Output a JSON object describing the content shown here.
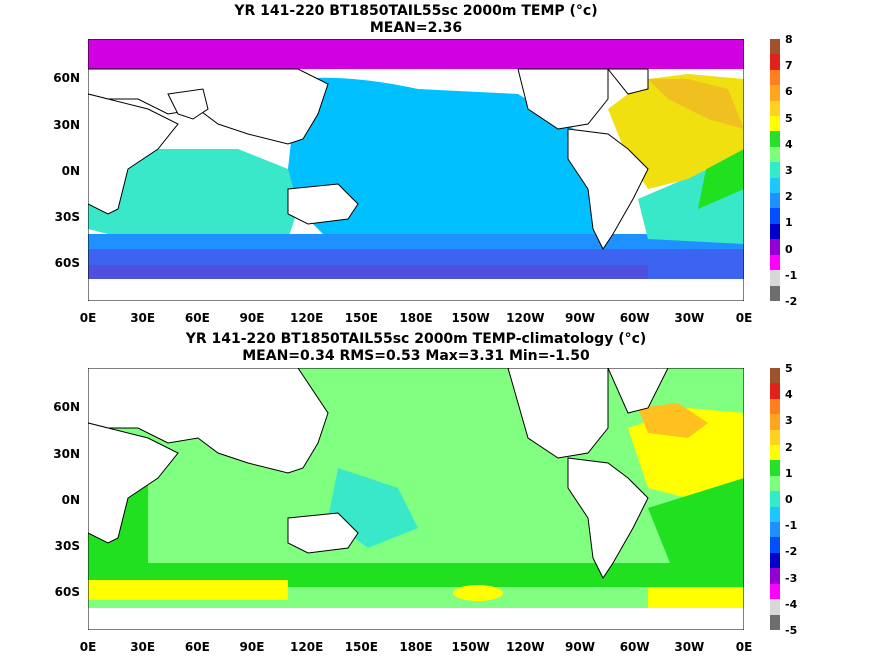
{
  "panels": [
    {
      "title_line1": "YR 141-220 BT1850TAIL55sc 2000m TEMP (°c)",
      "title_line2": "MEAN=2.36",
      "colorbar": {
        "labels": [
          "8",
          "7",
          "6",
          "5",
          "4",
          "3",
          "2",
          "1",
          "0",
          "-1",
          "-2"
        ],
        "colors": [
          "#a0522d",
          "#e0221b",
          "#ff7f1e",
          "#ffa51e",
          "#ffd21e",
          "#ffff00",
          "#28e028",
          "#7cff7c",
          "#32ebc8",
          "#1ec8ff",
          "#1e90ff",
          "#0050ff",
          "#0000c8",
          "#9400d3",
          "#ff00ff",
          "#d8d8d8",
          "#6e6e6e"
        ]
      }
    },
    {
      "title_line1": "YR 141-220 BT1850TAIL55sc 2000m TEMP-climatology (°c)",
      "title_line2": "MEAN=0.34   RMS=0.53   Max=3.31   Min=-1.50",
      "colorbar": {
        "labels": [
          "5",
          "4",
          "3",
          "2",
          "1",
          "0",
          "-1",
          "-2",
          "-3",
          "-4",
          "-5"
        ],
        "colors": [
          "#a0522d",
          "#e0221b",
          "#ff7f1e",
          "#ffa51e",
          "#ffd21e",
          "#ffff00",
          "#28e028",
          "#7cff7c",
          "#32ebc8",
          "#1ec8ff",
          "#1e90ff",
          "#0050ff",
          "#0000c8",
          "#9400d3",
          "#ff00ff",
          "#d8d8d8",
          "#6e6e6e"
        ]
      }
    }
  ],
  "lat_labels": [
    "60N",
    "30N",
    "0N",
    "30S",
    "60S"
  ],
  "lon_labels": [
    "0E",
    "30E",
    "60E",
    "90E",
    "120E",
    "150E",
    "180E",
    "150W",
    "120W",
    "90W",
    "60W",
    "30W",
    "0E"
  ],
  "field_colors": {
    "top": {
      "pacific": "#00c0ff",
      "indian": "#38e8c8",
      "southern_band1": "#1e90ff",
      "southern_band2": "#3c64f0",
      "southern_band3": "#5050e0",
      "atlantic_n": "#f0e010",
      "atlantic_ne": "#f0c020",
      "atlantic_s": "#38e8c8",
      "arctic": "#d000e0"
    },
    "bottom": {
      "ocean": "#80ff80",
      "indian_w": "#20e020",
      "southern": "#20e020",
      "southern_yellow": "#ffff00",
      "atlantic_n": "#ffff00",
      "atlantic_ne": "#ffc020",
      "atlantic_s": "#20e020"
    }
  }
}
